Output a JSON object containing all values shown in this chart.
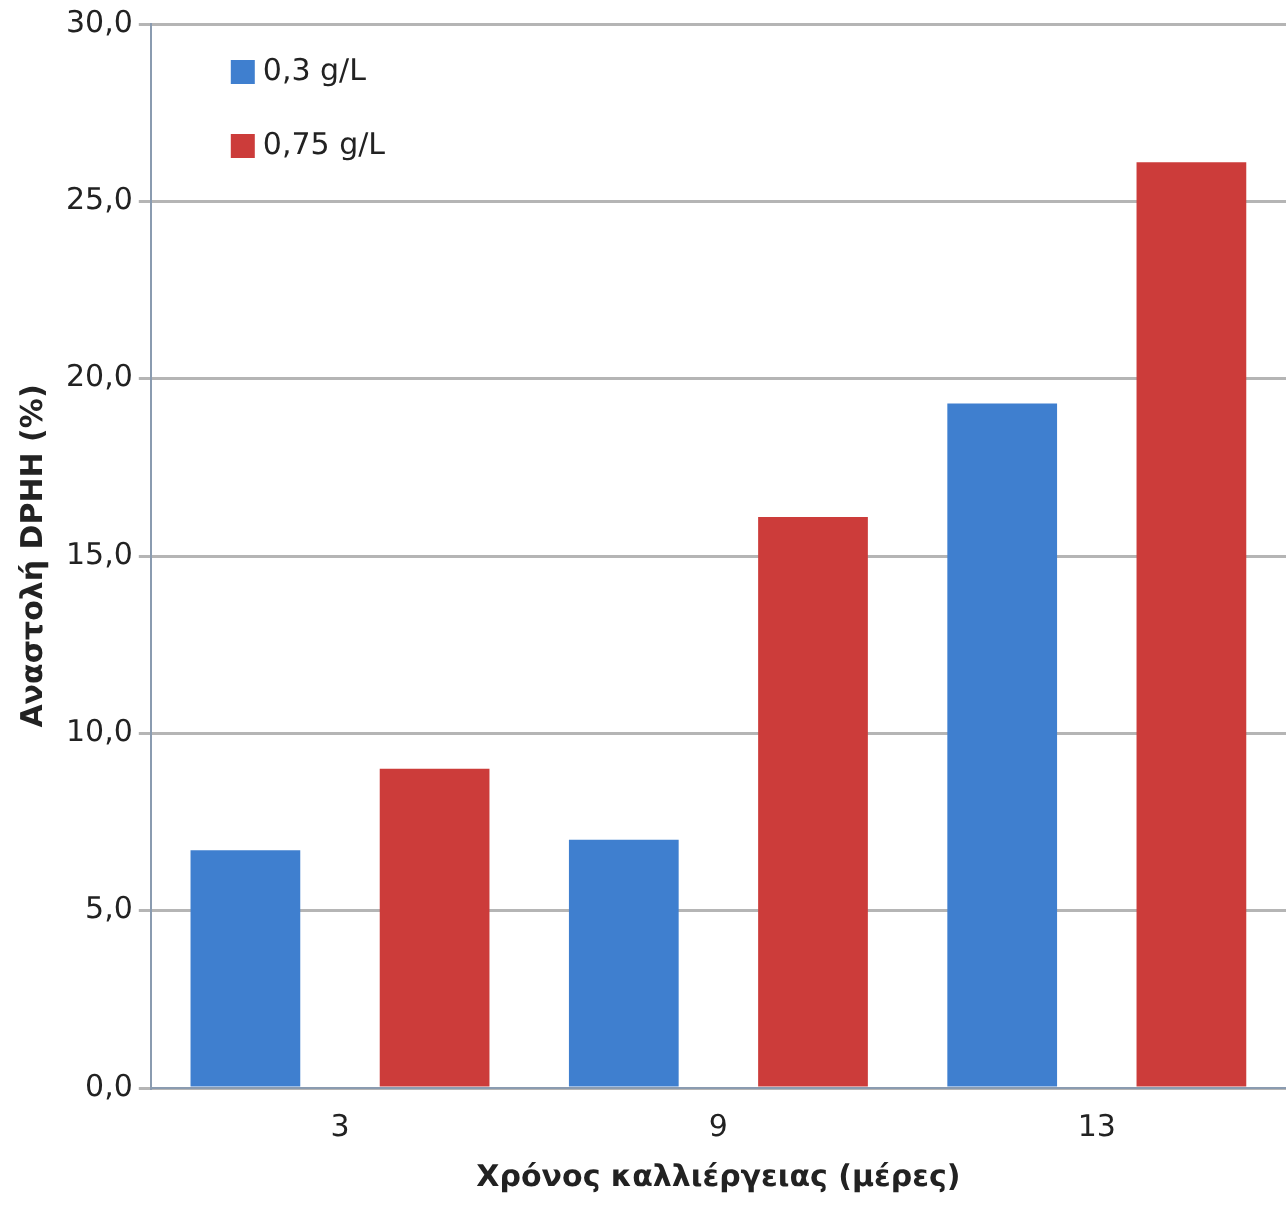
{
  "chart_data": {
    "type": "bar",
    "xlabel": "Χρόνος καλλιέργειας (μέρες)",
    "ylabel": "Αναστολή DPHH (%)",
    "categories": [
      "3",
      "9",
      "13"
    ],
    "series": [
      {
        "name": "0,3 g/L",
        "color": "#3f7fcf",
        "values": [
          6.7,
          7.0,
          19.3
        ]
      },
      {
        "name": "0,75 g/L",
        "color": "#cc3c3a",
        "values": [
          9.0,
          16.1,
          26.1
        ]
      }
    ],
    "ylim": [
      0,
      30
    ],
    "yticks": [
      {
        "value": 0,
        "label": "0,0"
      },
      {
        "value": 5,
        "label": "5,0"
      },
      {
        "value": 10,
        "label": "10,0"
      },
      {
        "value": 15,
        "label": "15,0"
      },
      {
        "value": 20,
        "label": "20,0"
      },
      {
        "value": 25,
        "label": "25,0"
      },
      {
        "value": 30,
        "label": "30,0"
      }
    ],
    "grid": "y",
    "legend": "top left"
  }
}
